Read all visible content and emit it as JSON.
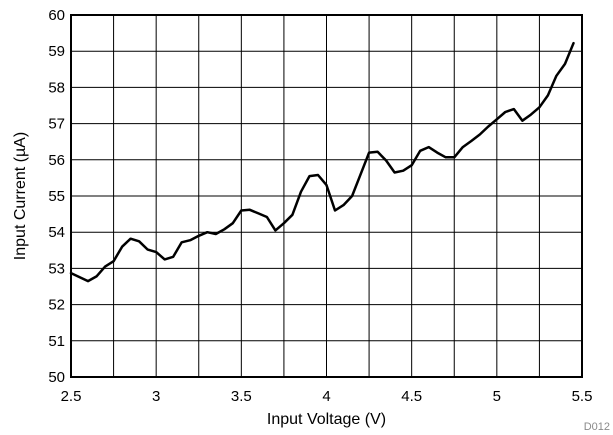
{
  "chart_data": {
    "type": "line",
    "title": "",
    "xlabel": "Input Voltage (V)",
    "ylabel": "Input Current (µA)",
    "xlim": [
      2.5,
      5.5
    ],
    "ylim": [
      50,
      60
    ],
    "x_ticks": [
      2.5,
      3,
      3.5,
      4,
      4.5,
      5,
      5.5
    ],
    "x_tick_labels": [
      "2.5",
      "3",
      "3.5",
      "4",
      "4.5",
      "5",
      "5.5"
    ],
    "y_ticks": [
      50,
      51,
      52,
      53,
      54,
      55,
      56,
      57,
      58,
      59,
      60
    ],
    "y_tick_labels": [
      "50",
      "51",
      "52",
      "53",
      "54",
      "55",
      "56",
      "57",
      "58",
      "59",
      "60"
    ],
    "x_minor_step": 0.25,
    "grid": true,
    "series_color": "#000000",
    "figure_id": "D012",
    "series": [
      {
        "x": [
          2.5,
          2.6,
          2.65,
          2.7,
          2.75,
          2.8,
          2.85,
          2.9,
          2.95,
          3.0,
          3.05,
          3.1,
          3.15,
          3.2,
          3.25,
          3.3,
          3.35,
          3.4,
          3.45,
          3.5,
          3.55,
          3.6,
          3.65,
          3.7,
          3.75,
          3.8,
          3.85,
          3.9,
          3.95,
          4.0,
          4.05,
          4.1,
          4.15,
          4.2,
          4.25,
          4.3,
          4.35,
          4.4,
          4.45,
          4.5,
          4.55,
          4.6,
          4.65,
          4.7,
          4.75,
          4.8,
          4.85,
          4.9,
          4.95,
          5.0,
          5.05,
          5.1,
          5.15,
          5.2,
          5.25,
          5.3,
          5.35,
          5.4,
          5.45
        ],
        "y": [
          52.87,
          52.65,
          52.78,
          53.05,
          53.2,
          53.6,
          53.82,
          53.75,
          53.52,
          53.45,
          53.25,
          53.32,
          53.72,
          53.78,
          53.9,
          54.0,
          53.95,
          54.08,
          54.25,
          54.6,
          54.62,
          54.52,
          54.42,
          54.05,
          54.25,
          54.48,
          55.12,
          55.55,
          55.58,
          55.3,
          54.6,
          54.75,
          55.0,
          55.6,
          56.2,
          56.22,
          55.98,
          55.65,
          55.7,
          55.85,
          56.25,
          56.35,
          56.2,
          56.07,
          56.07,
          56.35,
          56.52,
          56.7,
          56.92,
          57.12,
          57.32,
          57.4,
          57.08,
          57.25,
          57.45,
          57.78,
          58.32,
          58.65,
          59.22
        ]
      }
    ]
  }
}
